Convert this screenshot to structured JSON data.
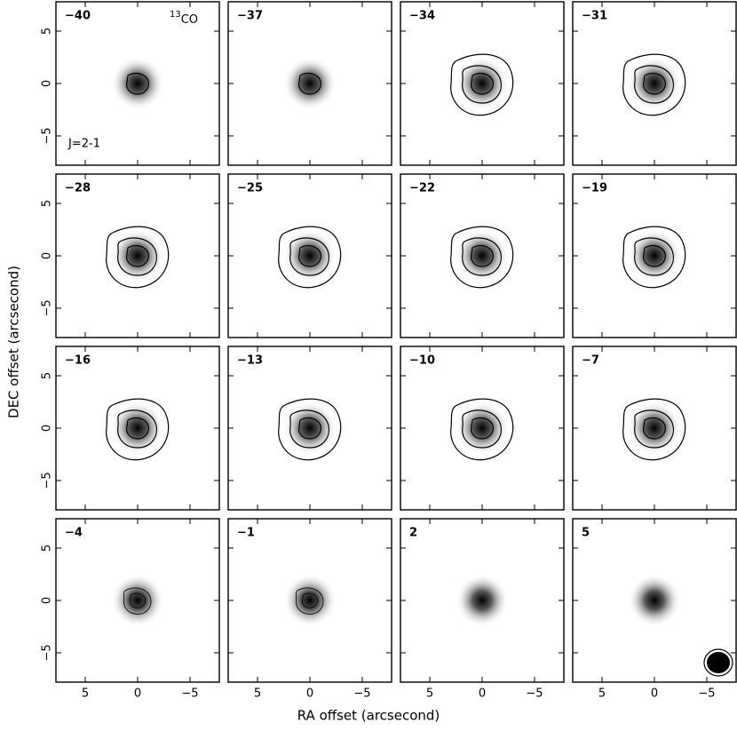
{
  "chart_data": {
    "type": "channel_map",
    "xlabel": "RA offset  (arcsecond)",
    "ylabel": "DEC offset  (arcsecond)",
    "line_sup": "13",
    "line_name": "CO",
    "transition": "J=2-1",
    "panels": [
      "−40",
      "−37",
      "−34",
      "−31",
      "−28",
      "−25",
      "−22",
      "−19",
      "−16",
      "−13",
      "−10",
      "−7",
      "−4",
      "−1",
      "2",
      "5"
    ],
    "xlim": [
      7.8,
      -7.8
    ],
    "ylim": [
      -7.8,
      7.8
    ],
    "xticks": [
      5,
      0,
      {
        "value": -5,
        "label": "−5"
      }
    ],
    "yticks": [
      {
        "value": -5,
        "label": "−5"
      },
      0,
      5
    ]
  }
}
